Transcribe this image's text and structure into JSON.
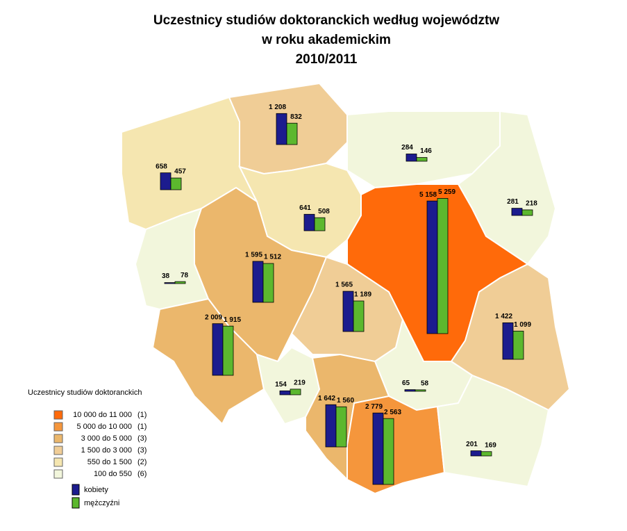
{
  "title": [
    "Uczestnicy studiów doktoranckich według województw",
    "w roku akademickim",
    "2010/2011"
  ],
  "legend": {
    "title": "Uczestnicy studiów doktoranckich",
    "classes": [
      {
        "label": "10 000 do 11 000",
        "count": "(1)",
        "color": "#ff6a0a"
      },
      {
        "label": "5 000 do 10 000",
        "count": "(1)",
        "color": "#f5963c"
      },
      {
        "label": "3 000 do 5 000",
        "count": "(3)",
        "color": "#ebb76c"
      },
      {
        "label": "1 500 do 3 000",
        "count": "(3)",
        "color": "#f0cd96"
      },
      {
        "label": "550 do 1 500",
        "count": "(2)",
        "color": "#f5e6b0"
      },
      {
        "label": "100 do 550",
        "count": "(6)",
        "color": "#f2f6dc"
      }
    ],
    "series": [
      {
        "name": "kobiety",
        "color": "#1c1c8e"
      },
      {
        "name": "mężczyźni",
        "color": "#5cb82e"
      }
    ]
  },
  "regions": [
    {
      "women": {
        "value": 1208,
        "label": "1 208"
      },
      "men": {
        "value": 832,
        "label": "832"
      }
    },
    {
      "women": {
        "value": 284,
        "label": "284"
      },
      "men": {
        "value": 146,
        "label": "146"
      }
    },
    {
      "women": {
        "value": 281,
        "label": "281"
      },
      "men": {
        "value": 218,
        "label": "218"
      }
    },
    {
      "women": {
        "value": 658,
        "label": "658"
      },
      "men": {
        "value": 457,
        "label": "457"
      }
    },
    {
      "women": {
        "value": 641,
        "label": "641"
      },
      "men": {
        "value": 508,
        "label": "508"
      }
    },
    {
      "women": {
        "value": 5158,
        "label": "5 158"
      },
      "men": {
        "value": 5259,
        "label": "5 259"
      }
    },
    {
      "women": {
        "value": 38,
        "label": "38"
      },
      "men": {
        "value": 78,
        "label": "78"
      }
    },
    {
      "women": {
        "value": 1595,
        "label": "1 595"
      },
      "men": {
        "value": 1512,
        "label": "1 512"
      }
    },
    {
      "women": {
        "value": 1565,
        "label": "1 565"
      },
      "men": {
        "value": 1189,
        "label": "1 189"
      }
    },
    {
      "women": {
        "value": 1422,
        "label": "1 422"
      },
      "men": {
        "value": 1099,
        "label": "1 099"
      }
    },
    {
      "women": {
        "value": 2009,
        "label": "2 009"
      },
      "men": {
        "value": 1915,
        "label": "1 915"
      }
    },
    {
      "women": {
        "value": 154,
        "label": "154"
      },
      "men": {
        "value": 219,
        "label": "219"
      }
    },
    {
      "women": {
        "value": 65,
        "label": "65"
      },
      "men": {
        "value": 58,
        "label": "58"
      }
    },
    {
      "women": {
        "value": 1642,
        "label": "1 642"
      },
      "men": {
        "value": 1560,
        "label": "1 560"
      }
    },
    {
      "women": {
        "value": 2779,
        "label": "2 779"
      },
      "men": {
        "value": 2563,
        "label": "2 563"
      }
    },
    {
      "women": {
        "value": 201,
        "label": "201"
      },
      "men": {
        "value": 169,
        "label": "169"
      }
    }
  ]
}
